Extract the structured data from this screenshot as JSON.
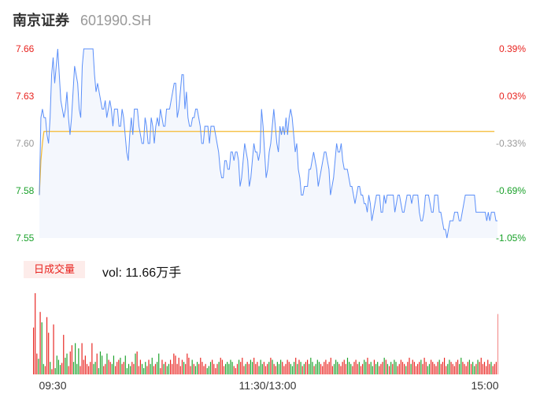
{
  "header": {
    "name": "南京证券",
    "code": "601990.SH"
  },
  "volume_badge": "日成交量",
  "volume_text": "vol: 11.66万手",
  "colors": {
    "up": "#e8231f",
    "down": "#1aa12a",
    "price": "#5b8ff9",
    "avg": "#f5b92e",
    "area": "#f4f7fd",
    "neutral": "#999999"
  },
  "chart_data": [
    {
      "type": "line",
      "x_ticks": [
        "09:30",
        "11:30/13:00",
        "15:00"
      ],
      "y_ticks": [
        "7.66",
        "7.63",
        "7.60",
        "7.58",
        "7.55"
      ],
      "y_ticks_right": [
        "0.39%",
        "0.03%",
        "-0.33%",
        "-0.69%",
        "-1.05%"
      ],
      "ylim": [
        7.55,
        7.66
      ],
      "series": [
        {
          "values": [
            7.575,
            7.62,
            7.625,
            7.62,
            7.62,
            7.61,
            7.605,
            7.62,
            7.645,
            7.655,
            7.64,
            7.65,
            7.66,
            7.645,
            7.63,
            7.625,
            7.62,
            7.625,
            7.635,
            7.62,
            7.61,
            7.62,
            7.635,
            7.65,
            7.645,
            7.64,
            7.625,
            7.62,
            7.65,
            7.66,
            7.66,
            7.66,
            7.66,
            7.66,
            7.66,
            7.66,
            7.645,
            7.635,
            7.64,
            7.635,
            7.63,
            7.625,
            7.625,
            7.63,
            7.62,
            7.625,
            7.63,
            7.625,
            7.615,
            7.625,
            7.625,
            7.625,
            7.615,
            7.615,
            7.625,
            7.62,
            7.61,
            7.6,
            7.595,
            7.61,
            7.62,
            7.61,
            7.625,
            7.625,
            7.625,
            7.615,
            7.61,
            7.605,
            7.605,
            7.62,
            7.615,
            7.605,
            7.605,
            7.62,
            7.615,
            7.605,
            7.615,
            7.62,
            7.615,
            7.625,
            7.62,
            7.615,
            7.615,
            7.625,
            7.625,
            7.625,
            7.63,
            7.635,
            7.64,
            7.64,
            7.62,
            7.625,
            7.635,
            7.645,
            7.645,
            7.625,
            7.635,
            7.62,
            7.615,
            7.615,
            7.62,
            7.62,
            7.625,
            7.625,
            7.62,
            7.615,
            7.605,
            7.605,
            7.615,
            7.615,
            7.615,
            7.605,
            7.615,
            7.615,
            7.615,
            7.61,
            7.605,
            7.6,
            7.59,
            7.585,
            7.585,
            7.595,
            7.595,
            7.59,
            7.59,
            7.6,
            7.6,
            7.595,
            7.6,
            7.6,
            7.595,
            7.58,
            7.585,
            7.595,
            7.605,
            7.6,
            7.595,
            7.58,
            7.585,
            7.595,
            7.605,
            7.6,
            7.6,
            7.595,
            7.6,
            7.625,
            7.615,
            7.6,
            7.585,
            7.59,
            7.6,
            7.605,
            7.615,
            7.625,
            7.615,
            7.605,
            7.6,
            7.615,
            7.61,
            7.615,
            7.61,
            7.62,
            7.61,
            7.62,
            7.625,
            7.62,
            7.61,
            7.6,
            7.605,
            7.59,
            7.585,
            7.575,
            7.575,
            7.58,
            7.58,
            7.58,
            7.59,
            7.59,
            7.595,
            7.6,
            7.595,
            7.59,
            7.58,
            7.585,
            7.59,
            7.595,
            7.6,
            7.6,
            7.595,
            7.59,
            7.575,
            7.58,
            7.585,
            7.595,
            7.605,
            7.6,
            7.6,
            7.605,
            7.595,
            7.59,
            7.59,
            7.59,
            7.585,
            7.58,
            7.58,
            7.575,
            7.57,
            7.575,
            7.58,
            7.58,
            7.575,
            7.575,
            7.57,
            7.57,
            7.565,
            7.575,
            7.57,
            7.56,
            7.565,
            7.57,
            7.575,
            7.575,
            7.575,
            7.565,
            7.565,
            7.575,
            7.57,
            7.575,
            7.575,
            7.575,
            7.575,
            7.575,
            7.565,
            7.57,
            7.575,
            7.575,
            7.57,
            7.565,
            7.565,
            7.57,
            7.575,
            7.575,
            7.575,
            7.57,
            7.575,
            7.575,
            7.575,
            7.575,
            7.565,
            7.56,
            7.56,
            7.565,
            7.575,
            7.575,
            7.575,
            7.57,
            7.565,
            7.565,
            7.575,
            7.575,
            7.575,
            7.565,
            7.565,
            7.56,
            7.555,
            7.555,
            7.55,
            7.555,
            7.56,
            7.56,
            7.56,
            7.565,
            7.565,
            7.565,
            7.56,
            7.56,
            7.565,
            7.57,
            7.575,
            7.575,
            7.575,
            7.575,
            7.575,
            7.575,
            7.575,
            7.565,
            7.565,
            7.565,
            7.565,
            7.565,
            7.565,
            7.565,
            7.56,
            7.565,
            7.56,
            7.565,
            7.565,
            7.565,
            7.56,
            7.56
          ]
        },
        {
          "values": [
            7.575,
            7.595,
            7.605,
            7.612,
            7.612,
            7.612,
            7.612,
            7.612,
            7.612,
            7.612,
            7.612,
            7.612,
            7.612,
            7.612,
            7.612,
            7.612,
            7.612,
            7.612,
            7.612,
            7.612,
            7.612,
            7.612,
            7.612,
            7.612,
            7.612,
            7.612,
            7.612,
            7.612,
            7.612,
            7.612,
            7.612,
            7.612,
            7.612,
            7.612,
            7.612,
            7.612,
            7.612,
            7.612,
            7.612,
            7.612,
            7.612,
            7.612,
            7.612,
            7.612,
            7.612,
            7.612,
            7.612,
            7.612,
            7.612,
            7.612,
            7.612,
            7.612,
            7.612,
            7.612,
            7.612,
            7.612,
            7.612,
            7.612,
            7.612,
            7.612,
            7.612,
            7.612,
            7.612,
            7.612,
            7.612,
            7.612,
            7.612,
            7.612,
            7.612,
            7.612,
            7.612,
            7.612,
            7.612,
            7.612,
            7.612,
            7.612,
            7.612,
            7.612,
            7.612,
            7.612,
            7.612,
            7.612,
            7.612,
            7.612,
            7.612,
            7.612,
            7.612,
            7.612,
            7.612,
            7.612,
            7.612,
            7.612,
            7.612,
            7.612,
            7.612,
            7.612,
            7.612,
            7.612,
            7.612,
            7.612,
            7.612,
            7.612,
            7.612,
            7.612,
            7.612,
            7.612,
            7.612,
            7.612,
            7.612,
            7.612,
            7.612,
            7.612,
            7.612,
            7.612,
            7.612,
            7.612,
            7.612,
            7.612,
            7.612,
            7.612,
            7.612,
            7.612,
            7.612,
            7.612,
            7.612,
            7.612,
            7.612,
            7.612,
            7.612,
            7.612,
            7.612,
            7.612,
            7.612,
            7.612,
            7.612,
            7.612,
            7.612,
            7.612,
            7.612,
            7.612,
            7.612,
            7.612,
            7.612,
            7.612,
            7.612,
            7.612,
            7.612,
            7.612,
            7.612,
            7.612,
            7.612,
            7.612,
            7.612,
            7.612,
            7.612,
            7.612,
            7.612,
            7.612,
            7.612,
            7.612,
            7.612,
            7.612,
            7.612,
            7.612,
            7.612,
            7.612,
            7.612,
            7.612,
            7.612,
            7.612,
            7.612,
            7.612,
            7.612,
            7.612,
            7.612,
            7.612,
            7.612,
            7.612,
            7.612,
            7.612,
            7.612,
            7.612,
            7.612,
            7.612,
            7.612,
            7.612,
            7.612,
            7.612,
            7.612,
            7.612,
            7.612,
            7.612,
            7.612,
            7.612,
            7.612,
            7.612,
            7.612,
            7.612,
            7.612,
            7.612,
            7.612,
            7.612,
            7.612,
            7.612,
            7.612,
            7.612,
            7.612,
            7.612,
            7.612,
            7.612,
            7.612,
            7.612,
            7.612,
            7.612,
            7.612,
            7.612,
            7.612,
            7.612,
            7.612,
            7.612,
            7.612,
            7.612,
            7.612,
            7.612,
            7.612,
            7.612,
            7.612,
            7.612,
            7.612,
            7.612,
            7.612,
            7.612,
            7.612,
            7.612,
            7.612,
            7.612,
            7.612,
            7.612,
            7.612,
            7.612,
            7.612,
            7.612,
            7.612,
            7.612,
            7.612,
            7.612,
            7.612,
            7.612,
            7.612,
            7.612,
            7.612,
            7.612,
            7.612,
            7.612,
            7.612,
            7.612,
            7.612,
            7.612,
            7.612,
            7.612,
            7.612,
            7.612,
            7.612,
            7.612,
            7.612,
            7.612,
            7.612,
            7.612,
            7.612,
            7.612,
            7.612,
            7.612,
            7.612,
            7.612,
            7.612,
            7.612,
            7.612,
            7.612,
            7.612,
            7.612,
            7.612,
            7.612,
            7.612,
            7.612,
            7.612,
            7.612,
            7.612,
            7.612,
            7.612,
            7.612,
            7.612,
            7.612,
            7.612,
            7.612,
            7.612,
            7.612,
            7.612,
            7.612
          ]
        }
      ]
    },
    {
      "type": "bar",
      "series": [
        {
          "values": [
            45,
            78,
            20,
            15,
            60,
            50,
            10,
            8,
            55,
            40,
            12,
            5,
            48,
            6,
            18,
            14,
            9,
            11,
            38,
            16,
            20,
            8,
            22,
            28,
            12,
            30,
            10,
            25,
            8,
            30,
            14,
            18,
            10,
            8,
            12,
            30,
            10,
            12,
            20,
            6,
            22,
            18,
            8,
            10,
            20,
            14,
            12,
            10,
            18,
            8,
            12,
            14,
            16,
            10,
            12,
            18,
            6,
            10,
            8,
            12,
            10,
            20,
            22,
            8,
            14,
            10,
            6,
            12,
            8,
            14,
            10,
            16,
            8,
            10,
            12,
            20,
            6,
            14,
            10,
            12,
            8,
            10,
            14,
            10,
            20,
            18,
            10,
            16,
            8,
            14,
            12,
            10,
            20,
            16,
            8,
            14,
            10,
            8,
            12,
            10,
            16,
            12,
            8,
            10,
            6,
            8,
            12,
            14,
            10,
            6,
            10,
            12,
            16,
            14,
            8,
            10,
            12,
            10,
            14,
            12,
            8,
            6,
            10,
            14,
            12,
            16,
            8,
            10,
            12,
            10,
            14,
            12,
            16,
            10,
            12,
            8,
            14,
            10,
            12,
            8,
            10,
            12,
            16,
            14,
            10,
            8,
            12,
            10,
            14,
            12,
            8,
            10,
            14,
            12,
            10,
            8,
            12,
            16,
            10,
            14,
            12,
            8,
            10,
            12,
            14,
            10,
            16,
            12,
            8,
            10,
            14,
            12,
            10,
            8,
            12,
            14,
            10,
            12,
            16,
            8,
            10,
            14,
            12,
            10,
            8,
            12,
            14,
            10,
            16,
            12,
            10,
            8,
            12,
            14,
            10,
            12,
            8,
            10,
            14,
            12,
            16,
            10,
            12,
            8,
            14,
            10,
            12,
            8,
            10,
            12,
            16,
            14,
            10,
            8,
            12,
            10,
            14,
            12,
            8,
            10,
            14,
            12,
            10,
            8,
            12,
            16,
            10,
            14,
            12,
            8,
            10,
            12,
            14,
            10,
            16,
            12,
            8,
            10,
            14,
            12,
            10,
            8,
            12,
            14,
            10,
            12,
            16,
            8,
            10,
            14,
            12,
            10,
            8,
            12,
            14,
            10,
            16,
            12,
            10,
            8,
            12,
            14,
            10,
            12,
            8,
            10,
            14,
            12,
            16,
            10,
            12,
            8,
            14,
            10,
            12,
            8,
            10,
            12,
            58
          ]
        }
      ]
    }
  ]
}
